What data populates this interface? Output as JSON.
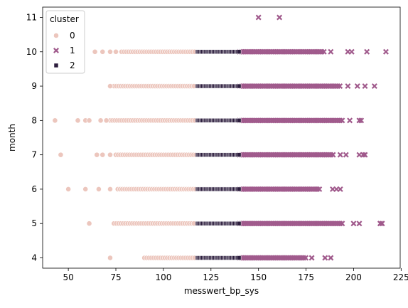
{
  "chart_data": {
    "type": "scatter",
    "title": "",
    "xlabel": "messwert_bp_sys",
    "ylabel": "month",
    "xlim": [
      36.5,
      224.5
    ],
    "ylim": [
      3.7,
      11.3
    ],
    "xticks": [
      50,
      75,
      100,
      125,
      150,
      175,
      200,
      225
    ],
    "yticks": [
      4,
      5,
      6,
      7,
      8,
      9,
      10,
      11
    ],
    "grid": false,
    "legend": {
      "title": "cluster",
      "placement": "top-left"
    },
    "series": [
      {
        "name": "0",
        "marker": "circle",
        "color": "#ecc6bd",
        "rows": [
          {
            "month": 4,
            "isolated": [
              72
            ],
            "dense_from": 90,
            "dense_to": 117
          },
          {
            "month": 5,
            "isolated": [
              61
            ],
            "dense_from": 74,
            "dense_to": 117
          },
          {
            "month": 6,
            "isolated": [
              50,
              59,
              66,
              72
            ],
            "dense_from": 76,
            "dense_to": 117
          },
          {
            "month": 7,
            "isolated": [
              46,
              65,
              68,
              72
            ],
            "dense_from": 75,
            "dense_to": 117
          },
          {
            "month": 8,
            "isolated": [
              43,
              55,
              59,
              61,
              67,
              70
            ],
            "dense_from": 72,
            "dense_to": 117
          },
          {
            "month": 9,
            "isolated": [
              72
            ],
            "dense_from": 74,
            "dense_to": 117
          },
          {
            "month": 10,
            "isolated": [
              64,
              68,
              72,
              75
            ],
            "dense_from": 78,
            "dense_to": 117
          }
        ]
      },
      {
        "name": "1",
        "marker": "x",
        "color": "#a05a8c",
        "rows": [
          {
            "month": 4,
            "isolated": [
              178,
              185,
              188
            ],
            "dense_from": 140,
            "dense_to": 175
          },
          {
            "month": 5,
            "isolated": [
              200,
              203,
              214,
              215
            ],
            "dense_from": 140,
            "dense_to": 195
          },
          {
            "month": 6,
            "isolated": [
              189,
              191,
              193
            ],
            "dense_from": 140,
            "dense_to": 182
          },
          {
            "month": 7,
            "isolated": [
              193,
              196,
              203,
              205,
              206
            ],
            "dense_from": 140,
            "dense_to": 190
          },
          {
            "month": 8,
            "isolated": [
              198,
              203,
              204
            ],
            "dense_from": 140,
            "dense_to": 194
          },
          {
            "month": 9,
            "isolated": [
              197,
              202,
              206,
              211
            ],
            "dense_from": 140,
            "dense_to": 193
          },
          {
            "month": 10,
            "isolated": [
              188,
              197,
              199,
              207,
              217
            ],
            "dense_from": 140,
            "dense_to": 185
          },
          {
            "month": 11,
            "isolated": [
              150,
              161
            ],
            "dense_from": null,
            "dense_to": null
          }
        ]
      },
      {
        "name": "2",
        "marker": "square",
        "color": "#2d1e3e",
        "rows": [
          {
            "month": 4,
            "isolated": [],
            "dense_from": 118,
            "dense_to": 140
          },
          {
            "month": 5,
            "isolated": [],
            "dense_from": 118,
            "dense_to": 140
          },
          {
            "month": 6,
            "isolated": [],
            "dense_from": 118,
            "dense_to": 140
          },
          {
            "month": 7,
            "isolated": [],
            "dense_from": 118,
            "dense_to": 140
          },
          {
            "month": 8,
            "isolated": [],
            "dense_from": 118,
            "dense_to": 140
          },
          {
            "month": 9,
            "isolated": [],
            "dense_from": 118,
            "dense_to": 140
          },
          {
            "month": 10,
            "isolated": [],
            "dense_from": 118,
            "dense_to": 140
          }
        ]
      }
    ]
  }
}
